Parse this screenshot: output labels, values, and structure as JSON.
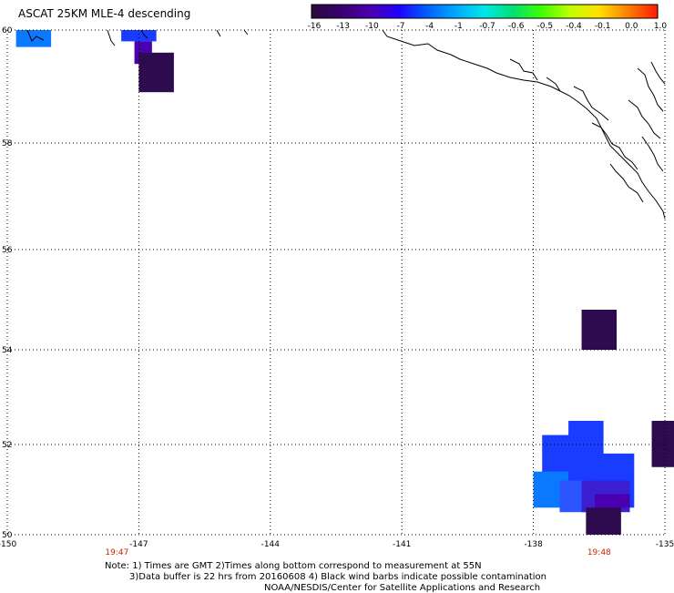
{
  "title": "ASCAT 25KM MLE-4 descending",
  "colorbar": {
    "labels": [
      "-16",
      "-13",
      "-10",
      "-7",
      "-4",
      "-1",
      "-0.7",
      "-0.6",
      "-0.5",
      "-0.4",
      "-0.1",
      "0.0",
      "1.0"
    ],
    "colors": [
      "#2a0a3e",
      "#3a0070",
      "#4b00b0",
      "#2000ff",
      "#0060ff",
      "#00a8ff",
      "#00e8e8",
      "#00e070",
      "#40ff00",
      "#c0ff00",
      "#ffe000",
      "#ff8000",
      "#ff2000"
    ]
  },
  "map": {
    "lon_labels": [
      "-150",
      "-147",
      "-144",
      "-141",
      "-138",
      "-135"
    ],
    "lat_labels": [
      "50",
      "52",
      "54",
      "56",
      "58",
      "60"
    ],
    "lon_range": [
      -150,
      -135
    ],
    "lat_range": [
      50,
      60
    ],
    "grid": true,
    "time_labels": [
      {
        "text": "19:47",
        "lon": -147.5
      },
      {
        "text": "19:48",
        "lon": -136.5
      }
    ],
    "cells": [
      {
        "lon0": -149.8,
        "lon1": -149.0,
        "lat0": 59.7,
        "lat1": 60.0,
        "color": "#0a78ff"
      },
      {
        "lon0": -147.4,
        "lon1": -146.6,
        "lat0": 59.8,
        "lat1": 60.0,
        "color": "#1a3cff"
      },
      {
        "lon0": -147.1,
        "lon1": -146.7,
        "lat0": 59.4,
        "lat1": 59.8,
        "color": "#4a00b0"
      },
      {
        "lon0": -147.0,
        "lon1": -146.2,
        "lat0": 58.9,
        "lat1": 59.6,
        "color": "#2e0a4e"
      },
      {
        "lon0": -136.9,
        "lon1": -136.1,
        "lat0": 54.0,
        "lat1": 54.8,
        "color": "#2e0a4e"
      },
      {
        "lon0": -135.3,
        "lon1": -134.7,
        "lat0": 51.5,
        "lat1": 52.5,
        "color": "#2e0a4e"
      },
      {
        "lon0": -137.2,
        "lon1": -136.4,
        "lat0": 51.6,
        "lat1": 52.5,
        "color": "#1a3cff"
      },
      {
        "lon0": -137.8,
        "lon1": -136.5,
        "lat0": 50.9,
        "lat1": 52.2,
        "color": "#1a3cff"
      },
      {
        "lon0": -136.6,
        "lon1": -135.7,
        "lat0": 50.6,
        "lat1": 51.8,
        "color": "#1a3cff"
      },
      {
        "lon0": -138.0,
        "lon1": -137.2,
        "lat0": 50.6,
        "lat1": 51.4,
        "color": "#0a78ff"
      },
      {
        "lon0": -137.4,
        "lon1": -136.6,
        "lat0": 50.5,
        "lat1": 51.2,
        "color": "#2a55ff"
      },
      {
        "lon0": -136.9,
        "lon1": -135.8,
        "lat0": 50.5,
        "lat1": 51.2,
        "color": "#3a20d0"
      },
      {
        "lon0": -136.6,
        "lon1": -135.8,
        "lat0": 50.6,
        "lat1": 50.9,
        "color": "#4a00b0"
      },
      {
        "lon0": -136.8,
        "lon1": -136.0,
        "lat0": 50.0,
        "lat1": 50.6,
        "color": "#2e0a4e"
      }
    ]
  },
  "notes": {
    "line1": "Note: 1) Times are GMT 2)Times along bottom correspond to measurement at 55N",
    "line2": "3)Data buffer is 22 hrs from 20160608 4) Black wind barbs indicate possible contamination",
    "line3": "NOAA/NESDIS/Center for Satellite Applications and Research"
  }
}
